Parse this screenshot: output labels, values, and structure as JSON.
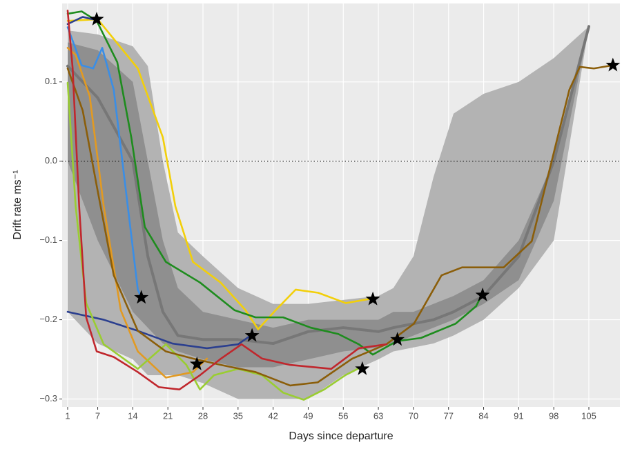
{
  "chart_data": {
    "type": "line",
    "xlabel": "Days since departure",
    "ylabel": "Drift rate ms⁻¹",
    "xlim": [
      -0.1,
      111.2
    ],
    "ylim": [
      -0.31,
      0.199
    ],
    "xticks": [
      1,
      7,
      14,
      21,
      28,
      35,
      42,
      49,
      56,
      63,
      70,
      77,
      84,
      91,
      98,
      105
    ],
    "yticks": [
      0.1,
      {
        "value": 0,
        "label": "0.0"
      },
      {
        "value": -0.1,
        "label": "−0.1"
      },
      {
        "value": -0.2,
        "label": "−0.2"
      },
      {
        "value": -0.3,
        "label": "−0.3"
      }
    ],
    "grid": true,
    "hline": 0,
    "bands": [
      {
        "color": "#b3b3b3",
        "x": [
          1,
          7,
          14,
          17,
          20,
          23,
          28,
          35,
          42,
          49,
          56,
          63,
          66,
          70,
          74,
          78,
          84,
          91,
          98,
          105
        ],
        "upper": [
          0.165,
          0.16,
          0.145,
          0.12,
          0.0,
          -0.09,
          -0.12,
          -0.16,
          -0.18,
          -0.18,
          -0.175,
          -0.17,
          -0.16,
          -0.12,
          -0.02,
          0.06,
          0.085,
          0.1,
          0.13,
          0.17
        ],
        "lower": [
          -0.19,
          -0.23,
          -0.25,
          -0.27,
          -0.27,
          -0.27,
          -0.28,
          -0.3,
          -0.3,
          -0.3,
          -0.27,
          -0.25,
          -0.24,
          -0.235,
          -0.23,
          -0.22,
          -0.2,
          -0.16,
          -0.1,
          0.17
        ]
      },
      {
        "color": "#8f8f8f",
        "x": [
          1,
          7,
          14,
          17,
          20,
          23,
          28,
          35,
          42,
          49,
          56,
          63,
          66,
          70,
          74,
          78,
          84,
          91,
          98,
          105
        ],
        "upper": [
          0.15,
          0.14,
          0.1,
          0.0,
          -0.1,
          -0.16,
          -0.19,
          -0.2,
          -0.21,
          -0.2,
          -0.2,
          -0.2,
          -0.19,
          -0.19,
          -0.18,
          -0.17,
          -0.15,
          -0.1,
          0.0,
          0.17
        ],
        "lower": [
          0.0,
          -0.1,
          -0.19,
          -0.21,
          -0.23,
          -0.24,
          -0.25,
          -0.26,
          -0.26,
          -0.25,
          -0.24,
          -0.235,
          -0.23,
          -0.22,
          -0.21,
          -0.2,
          -0.18,
          -0.15,
          -0.05,
          0.17
        ]
      }
    ],
    "mean_line": {
      "color": "#777777",
      "x": [
        1,
        7,
        14,
        17,
        20,
        23,
        28,
        35,
        42,
        49,
        56,
        63,
        66,
        70,
        74,
        78,
        84,
        91,
        98,
        105
      ],
      "values": [
        0.12,
        0.08,
        0.0,
        -0.12,
        -0.19,
        -0.22,
        -0.225,
        -0.225,
        -0.23,
        -0.215,
        -0.21,
        -0.215,
        -0.21,
        -0.205,
        -0.2,
        -0.19,
        -0.17,
        -0.12,
        0.0,
        0.17
      ]
    },
    "series": [
      {
        "color": "#f2cf0a",
        "x": [
          1,
          7,
          15,
          20,
          22.5,
          26,
          31.5,
          36.5,
          39,
          42.5,
          46.5,
          51,
          56.5,
          62
        ],
        "values": [
          0.177,
          0.179,
          0.117,
          0.03,
          -0.057,
          -0.127,
          -0.153,
          -0.188,
          -0.212,
          -0.188,
          -0.162,
          -0.166,
          -0.179,
          -0.173
        ]
      },
      {
        "color": "#1e8c1e",
        "x": [
          1,
          3.8,
          6.8,
          10.9,
          13.7,
          16.4,
          20.6,
          27.4,
          34.3,
          38.5,
          44,
          49.5,
          55,
          59.1,
          61.9,
          66.7,
          71.5,
          78.4,
          82.5,
          83.6
        ],
        "values": [
          0.186,
          0.189,
          0.177,
          0.125,
          0.03,
          -0.083,
          -0.127,
          -0.153,
          -0.188,
          -0.197,
          -0.197,
          -0.21,
          -0.218,
          -0.231,
          -0.244,
          -0.227,
          -0.223,
          -0.205,
          -0.183,
          -0.169
        ]
      },
      {
        "color": "#2b3f8f",
        "x": [
          1,
          4,
          6
        ],
        "values": [
          0.173,
          0.182,
          0.179
        ]
      },
      {
        "color": "#3a8ee6",
        "x": [
          1,
          3.8,
          6.1,
          7.9,
          10.2,
          13,
          15,
          15.7
        ],
        "values": [
          0.169,
          0.121,
          0.117,
          0.143,
          0.09,
          -0.057,
          -0.162,
          -0.172
        ]
      },
      {
        "color": "#2b3f8f",
        "x": [
          1,
          8.2,
          15,
          21.9,
          28.8,
          35,
          37.5
        ],
        "values": [
          -0.19,
          -0.2,
          -0.214,
          -0.23,
          -0.236,
          -0.231,
          -0.22
        ]
      },
      {
        "color": "#e29a22",
        "x": [
          1,
          2.6,
          5.4,
          8.2,
          11.6,
          15,
          20.6,
          26,
          28.8
        ],
        "values": [
          0.143,
          0.134,
          0.082,
          -0.057,
          -0.188,
          -0.24,
          -0.273,
          -0.266,
          -0.249
        ]
      },
      {
        "color": "#9acd32",
        "x": [
          1,
          2.6,
          4.7,
          8.2,
          15,
          20.6,
          24.7,
          27.4,
          30.2,
          35,
          39.8,
          44,
          48.1,
          52.2,
          56.4,
          59.8
        ],
        "values": [
          0.099,
          -0.057,
          -0.179,
          -0.231,
          -0.262,
          -0.231,
          -0.257,
          -0.288,
          -0.27,
          -0.262,
          -0.27,
          -0.292,
          -0.301,
          -0.288,
          -0.27,
          -0.259
        ]
      },
      {
        "color": "#8b5e0a",
        "x": [
          1,
          4,
          6.8,
          10.2,
          15,
          20.6,
          26,
          31.6,
          38.5,
          45.4,
          50.9,
          57.8,
          64.6,
          70.1,
          75.6,
          79.7,
          88,
          93.6,
          97.7,
          101.1,
          103.2,
          106,
          109.8
        ],
        "values": [
          0.117,
          0.064,
          -0.031,
          -0.144,
          -0.214,
          -0.24,
          -0.249,
          -0.257,
          -0.266,
          -0.283,
          -0.279,
          -0.249,
          -0.231,
          -0.205,
          -0.144,
          -0.134,
          -0.134,
          -0.101,
          0.003,
          0.09,
          0.119,
          0.117,
          0.121
        ]
      },
      {
        "color": "#c0272d",
        "x": [
          1,
          2,
          3.3,
          4.7,
          6.8,
          10.2,
          15,
          19.2,
          23.3,
          27.4,
          31.6,
          35.7,
          39.8,
          45.4,
          53.6,
          59.1,
          64.6
        ],
        "values": [
          0.19,
          0.117,
          -0.057,
          -0.197,
          -0.24,
          -0.247,
          -0.266,
          -0.285,
          -0.288,
          -0.27,
          -0.249,
          -0.231,
          -0.249,
          -0.257,
          -0.262,
          -0.236,
          -0.231
        ]
      }
    ],
    "stars": {
      "color": "#000000",
      "x": [
        6.8,
        15.7,
        26.8,
        37.8,
        59.8,
        61.9,
        66.8,
        83.8,
        109.8
      ],
      "values": [
        0.179,
        -0.172,
        -0.256,
        -0.22,
        -0.262,
        -0.174,
        -0.225,
        -0.169,
        0.121
      ]
    }
  }
}
